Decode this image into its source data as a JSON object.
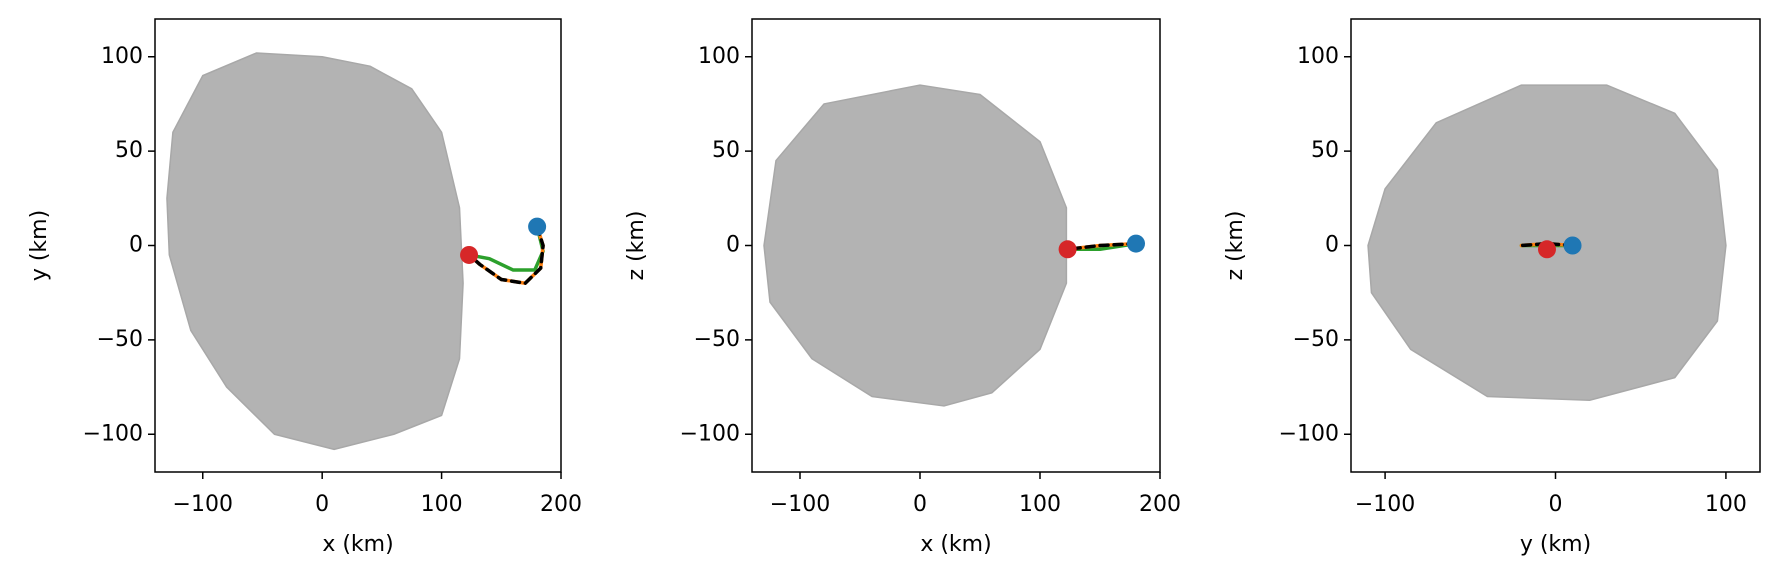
{
  "chart_data": [
    {
      "type": "line",
      "xlabel": "x (km)",
      "ylabel": "y (km)",
      "xlim": [
        -140,
        200
      ],
      "ylim": [
        -120,
        120
      ],
      "xticks": [
        {
          "value": -100,
          "label": "−100"
        },
        0,
        100,
        200
      ],
      "yticks": [
        {
          "value": -100,
          "label": "−100"
        },
        {
          "value": -50,
          "label": "−50"
        },
        0,
        50,
        100
      ],
      "series": [
        {
          "kind": "area",
          "color": "#b3b3b3",
          "x": [
            -130,
            -125,
            -100,
            -55,
            0,
            40,
            75,
            100,
            115,
            118,
            115,
            100,
            60,
            10,
            -40,
            -80,
            -110,
            -128
          ],
          "values": [
            25,
            60,
            90,
            102,
            100,
            95,
            83,
            60,
            20,
            -20,
            -60,
            -90,
            -100,
            -108,
            -100,
            -75,
            -45,
            -5
          ]
        },
        {
          "kind": "line",
          "color": "#2ca02c",
          "x": [
            180,
            185,
            178,
            160,
            140,
            123
          ],
          "values": [
            10,
            -3,
            -13,
            -13,
            -7,
            -5
          ]
        },
        {
          "kind": "line",
          "color": "#ff7f0e",
          "x": [
            180,
            185,
            183,
            170,
            150,
            132,
            123
          ],
          "values": [
            10,
            0,
            -12,
            -20,
            -18,
            -10,
            -5
          ]
        },
        {
          "kind": "line",
          "color": "#000000",
          "dashed": true,
          "x": [
            180,
            185,
            183,
            170,
            150,
            132,
            123
          ],
          "values": [
            10,
            0,
            -12,
            -20,
            -18,
            -10,
            -5
          ]
        },
        {
          "kind": "point",
          "color": "#1f77b4",
          "x": [
            180
          ],
          "values": [
            10
          ]
        },
        {
          "kind": "point",
          "color": "#d62728",
          "x": [
            123
          ],
          "values": [
            -5
          ]
        }
      ]
    },
    {
      "type": "line",
      "xlabel": "x (km)",
      "ylabel": "z (km)",
      "xlim": [
        -140,
        200
      ],
      "ylim": [
        -120,
        120
      ],
      "xticks": [
        {
          "value": -100,
          "label": "−100"
        },
        0,
        100,
        200
      ],
      "yticks": [
        {
          "value": -100,
          "label": "−100"
        },
        {
          "value": -50,
          "label": "−50"
        },
        0,
        50,
        100
      ],
      "series": [
        {
          "kind": "area",
          "color": "#b3b3b3",
          "x": [
            -130,
            -120,
            -80,
            0,
            50,
            100,
            122,
            122,
            100,
            60,
            20,
            -40,
            -90,
            -125
          ],
          "values": [
            0,
            45,
            75,
            85,
            80,
            55,
            20,
            -20,
            -55,
            -78,
            -85,
            -80,
            -60,
            -30
          ]
        },
        {
          "kind": "line",
          "color": "#2ca02c",
          "x": [
            180,
            150,
            123
          ],
          "values": [
            1,
            -2,
            -2
          ]
        },
        {
          "kind": "line",
          "color": "#ff7f0e",
          "x": [
            180,
            150,
            123
          ],
          "values": [
            1,
            0,
            -2
          ]
        },
        {
          "kind": "line",
          "color": "#000000",
          "dashed": true,
          "x": [
            180,
            150,
            123
          ],
          "values": [
            1,
            0,
            -2
          ]
        },
        {
          "kind": "point",
          "color": "#1f77b4",
          "x": [
            180
          ],
          "values": [
            1
          ]
        },
        {
          "kind": "point",
          "color": "#d62728",
          "x": [
            123
          ],
          "values": [
            -2
          ]
        }
      ]
    },
    {
      "type": "line",
      "xlabel": "y (km)",
      "ylabel": "z (km)",
      "xlim": [
        -120,
        120
      ],
      "ylim": [
        -120,
        120
      ],
      "xticks": [
        {
          "value": -100,
          "label": "−100"
        },
        0,
        100
      ],
      "yticks": [
        {
          "value": -100,
          "label": "−100"
        },
        {
          "value": -50,
          "label": "−50"
        },
        0,
        50,
        100
      ],
      "series": [
        {
          "kind": "area",
          "color": "#b3b3b3",
          "x": [
            -110,
            -100,
            -70,
            -20,
            30,
            70,
            95,
            100,
            95,
            70,
            20,
            -40,
            -85,
            -108
          ],
          "values": [
            0,
            30,
            65,
            85,
            85,
            70,
            40,
            0,
            -40,
            -70,
            -82,
            -80,
            -55,
            -25
          ]
        },
        {
          "kind": "line",
          "color": "#2ca02c",
          "x": [
            10,
            -5,
            -20
          ],
          "values": [
            0,
            0,
            0
          ]
        },
        {
          "kind": "line",
          "color": "#ff7f0e",
          "x": [
            10,
            -5,
            -20
          ],
          "values": [
            0,
            1,
            0
          ]
        },
        {
          "kind": "line",
          "color": "#000000",
          "dashed": true,
          "x": [
            10,
            -5,
            -20
          ],
          "values": [
            0,
            1,
            0
          ]
        },
        {
          "kind": "point",
          "color": "#1f77b4",
          "x": [
            10
          ],
          "values": [
            0
          ]
        },
        {
          "kind": "point",
          "color": "#d62728",
          "x": [
            -5
          ],
          "values": [
            -2
          ]
        }
      ]
    }
  ]
}
